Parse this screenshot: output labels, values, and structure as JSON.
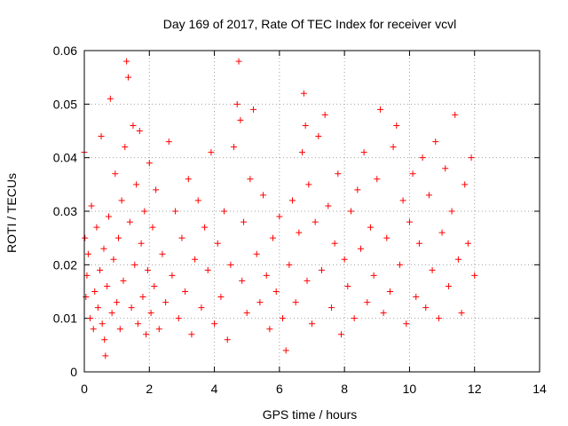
{
  "chart_data": {
    "type": "scatter",
    "title": "Day 169 of 2017, Rate Of TEC Index for receiver vcvl",
    "xlabel": "GPS time / hours",
    "ylabel": "ROTI / TECUs",
    "xlim": [
      0,
      14
    ],
    "ylim": [
      0,
      0.06
    ],
    "x_ticks": [
      0,
      2,
      4,
      6,
      8,
      10,
      12,
      14
    ],
    "x_tick_labels": [
      "0",
      "2",
      "4",
      "6",
      "8",
      "10",
      "12",
      "14"
    ],
    "y_ticks": [
      0,
      0.01,
      0.02,
      0.03,
      0.04,
      0.05,
      0.06
    ],
    "y_tick_labels": [
      "0",
      "0.01",
      "0.02",
      "0.03",
      "0.04",
      "0.05",
      "0.06"
    ],
    "grid": true,
    "legend": "none",
    "marker": "plus",
    "series_color": "#ff0000",
    "points": [
      [
        0.0,
        0.041
      ],
      [
        0.02,
        0.025
      ],
      [
        0.05,
        0.014
      ],
      [
        0.08,
        0.018
      ],
      [
        0.12,
        0.022
      ],
      [
        0.18,
        0.01
      ],
      [
        0.22,
        0.031
      ],
      [
        0.28,
        0.008
      ],
      [
        0.32,
        0.015
      ],
      [
        0.38,
        0.027
      ],
      [
        0.42,
        0.012
      ],
      [
        0.48,
        0.019
      ],
      [
        0.52,
        0.044
      ],
      [
        0.55,
        0.009
      ],
      [
        0.6,
        0.023
      ],
      [
        0.62,
        0.006
      ],
      [
        0.65,
        0.003
      ],
      [
        0.7,
        0.016
      ],
      [
        0.75,
        0.029
      ],
      [
        0.8,
        0.051
      ],
      [
        0.85,
        0.011
      ],
      [
        0.9,
        0.021
      ],
      [
        0.95,
        0.037
      ],
      [
        1.0,
        0.013
      ],
      [
        1.05,
        0.025
      ],
      [
        1.1,
        0.008
      ],
      [
        1.15,
        0.032
      ],
      [
        1.2,
        0.017
      ],
      [
        1.25,
        0.042
      ],
      [
        1.3,
        0.058
      ],
      [
        1.35,
        0.055
      ],
      [
        1.4,
        0.028
      ],
      [
        1.45,
        0.012
      ],
      [
        1.5,
        0.046
      ],
      [
        1.55,
        0.02
      ],
      [
        1.6,
        0.035
      ],
      [
        1.65,
        0.009
      ],
      [
        1.7,
        0.045
      ],
      [
        1.75,
        0.024
      ],
      [
        1.8,
        0.014
      ],
      [
        1.85,
        0.03
      ],
      [
        1.9,
        0.007
      ],
      [
        1.95,
        0.019
      ],
      [
        2.0,
        0.039
      ],
      [
        2.05,
        0.011
      ],
      [
        2.1,
        0.027
      ],
      [
        2.15,
        0.016
      ],
      [
        2.2,
        0.034
      ],
      [
        2.3,
        0.008
      ],
      [
        2.4,
        0.022
      ],
      [
        2.5,
        0.013
      ],
      [
        2.6,
        0.043
      ],
      [
        2.7,
        0.018
      ],
      [
        2.8,
        0.03
      ],
      [
        2.9,
        0.01
      ],
      [
        3.0,
        0.025
      ],
      [
        3.1,
        0.015
      ],
      [
        3.2,
        0.036
      ],
      [
        3.3,
        0.007
      ],
      [
        3.4,
        0.021
      ],
      [
        3.5,
        0.032
      ],
      [
        3.6,
        0.012
      ],
      [
        3.7,
        0.027
      ],
      [
        3.8,
        0.019
      ],
      [
        3.9,
        0.041
      ],
      [
        4.0,
        0.009
      ],
      [
        4.1,
        0.024
      ],
      [
        4.2,
        0.014
      ],
      [
        4.3,
        0.03
      ],
      [
        4.4,
        0.006
      ],
      [
        4.5,
        0.02
      ],
      [
        4.6,
        0.042
      ],
      [
        4.7,
        0.05
      ],
      [
        4.75,
        0.058
      ],
      [
        4.8,
        0.047
      ],
      [
        4.85,
        0.017
      ],
      [
        4.9,
        0.028
      ],
      [
        5.0,
        0.011
      ],
      [
        5.1,
        0.036
      ],
      [
        5.2,
        0.049
      ],
      [
        5.3,
        0.022
      ],
      [
        5.4,
        0.013
      ],
      [
        5.5,
        0.033
      ],
      [
        5.6,
        0.018
      ],
      [
        5.7,
        0.008
      ],
      [
        5.8,
        0.025
      ],
      [
        5.9,
        0.015
      ],
      [
        6.0,
        0.029
      ],
      [
        6.1,
        0.01
      ],
      [
        6.2,
        0.004
      ],
      [
        6.3,
        0.02
      ],
      [
        6.4,
        0.032
      ],
      [
        6.5,
        0.013
      ],
      [
        6.6,
        0.026
      ],
      [
        6.7,
        0.041
      ],
      [
        6.75,
        0.052
      ],
      [
        6.8,
        0.046
      ],
      [
        6.85,
        0.017
      ],
      [
        6.9,
        0.035
      ],
      [
        7.0,
        0.009
      ],
      [
        7.1,
        0.028
      ],
      [
        7.2,
        0.044
      ],
      [
        7.3,
        0.019
      ],
      [
        7.4,
        0.048
      ],
      [
        7.5,
        0.031
      ],
      [
        7.6,
        0.012
      ],
      [
        7.7,
        0.024
      ],
      [
        7.8,
        0.037
      ],
      [
        7.9,
        0.007
      ],
      [
        8.0,
        0.021
      ],
      [
        8.1,
        0.016
      ],
      [
        8.2,
        0.03
      ],
      [
        8.3,
        0.01
      ],
      [
        8.4,
        0.034
      ],
      [
        8.5,
        0.023
      ],
      [
        8.6,
        0.041
      ],
      [
        8.7,
        0.013
      ],
      [
        8.8,
        0.027
      ],
      [
        8.9,
        0.018
      ],
      [
        9.0,
        0.036
      ],
      [
        9.1,
        0.049
      ],
      [
        9.2,
        0.011
      ],
      [
        9.3,
        0.025
      ],
      [
        9.4,
        0.015
      ],
      [
        9.5,
        0.042
      ],
      [
        9.6,
        0.046
      ],
      [
        9.7,
        0.02
      ],
      [
        9.8,
        0.032
      ],
      [
        9.9,
        0.009
      ],
      [
        10.0,
        0.028
      ],
      [
        10.1,
        0.037
      ],
      [
        10.2,
        0.014
      ],
      [
        10.3,
        0.024
      ],
      [
        10.4,
        0.04
      ],
      [
        10.5,
        0.012
      ],
      [
        10.6,
        0.033
      ],
      [
        10.7,
        0.019
      ],
      [
        10.8,
        0.043
      ],
      [
        10.9,
        0.01
      ],
      [
        11.0,
        0.026
      ],
      [
        11.1,
        0.038
      ],
      [
        11.2,
        0.016
      ],
      [
        11.3,
        0.03
      ],
      [
        11.4,
        0.048
      ],
      [
        11.5,
        0.021
      ],
      [
        11.6,
        0.011
      ],
      [
        11.7,
        0.035
      ],
      [
        11.8,
        0.024
      ],
      [
        11.9,
        0.04
      ],
      [
        12.0,
        0.018
      ]
    ]
  }
}
